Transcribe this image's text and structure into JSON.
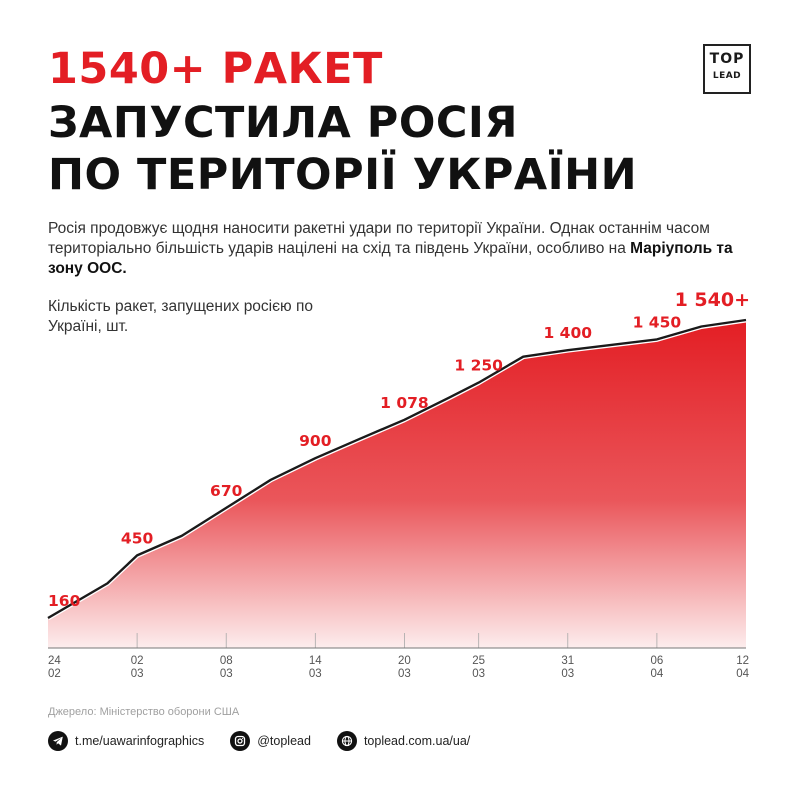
{
  "header": {
    "title_line1": "1540+ РАКЕТ",
    "title_line2": "ЗАПУСТИЛА РОСІЯ",
    "title_line3": "ПО ТЕРИТОРІЇ УКРАЇНИ",
    "logo_top": "TOP",
    "logo_bottom": "LEAD"
  },
  "description": {
    "text": "Росія продовжує щодня наносити ракетні удари по території України. Однак останнім часом територіально більшість ударів націлені на схід та південь України, особливо на ",
    "bold": "Маріуполь та зону ООС."
  },
  "chart_data": {
    "type": "area",
    "title": "Кількість ракет, запущених росією по Україні, шт.",
    "x_ticks": [
      {
        "day": "24",
        "month": "02"
      },
      {
        "day": "02",
        "month": "03"
      },
      {
        "day": "08",
        "month": "03"
      },
      {
        "day": "14",
        "month": "03"
      },
      {
        "day": "20",
        "month": "03"
      },
      {
        "day": "25",
        "month": "03"
      },
      {
        "day": "31",
        "month": "03"
      },
      {
        "day": "06",
        "month": "04"
      },
      {
        "day": "12",
        "month": "04"
      }
    ],
    "x_range": [
      "24.02",
      "12.04"
    ],
    "series": [
      {
        "points": [
          {
            "x": "24.02",
            "y": 160
          },
          {
            "x": "28.02",
            "y": 320
          },
          {
            "x": "02.03",
            "y": 450
          },
          {
            "x": "05.03",
            "y": 540
          },
          {
            "x": "08.03",
            "y": 670
          },
          {
            "x": "11.03",
            "y": 800
          },
          {
            "x": "14.03",
            "y": 900
          },
          {
            "x": "17.03",
            "y": 990
          },
          {
            "x": "20.03",
            "y": 1078
          },
          {
            "x": "23.03",
            "y": 1180
          },
          {
            "x": "25.03",
            "y": 1250
          },
          {
            "x": "28.03",
            "y": 1370
          },
          {
            "x": "31.03",
            "y": 1400
          },
          {
            "x": "06.04",
            "y": 1450
          },
          {
            "x": "09.04",
            "y": 1510
          },
          {
            "x": "12.04",
            "y": 1540
          }
        ]
      }
    ],
    "data_labels": [
      {
        "x": "24.02",
        "value": "160"
      },
      {
        "x": "02.03",
        "value": "450"
      },
      {
        "x": "08.03",
        "value": "670"
      },
      {
        "x": "14.03",
        "value": "900"
      },
      {
        "x": "20.03",
        "value": "1 078"
      },
      {
        "x": "25.03",
        "value": "1 250"
      },
      {
        "x": "31.03",
        "value": "1 400"
      },
      {
        "x": "06.04",
        "value": "1 450"
      },
      {
        "x": "12.04",
        "value": "1 540+"
      }
    ],
    "colors": {
      "fill": "#e31e24",
      "line": "#1a1a1a",
      "labels": "#e31e24"
    }
  },
  "source": "Джерело: Міністерство оборони США",
  "footer": {
    "telegram": "t.me/uawarinfographics",
    "instagram": "@toplead",
    "website": "toplead.com.ua/ua/"
  }
}
